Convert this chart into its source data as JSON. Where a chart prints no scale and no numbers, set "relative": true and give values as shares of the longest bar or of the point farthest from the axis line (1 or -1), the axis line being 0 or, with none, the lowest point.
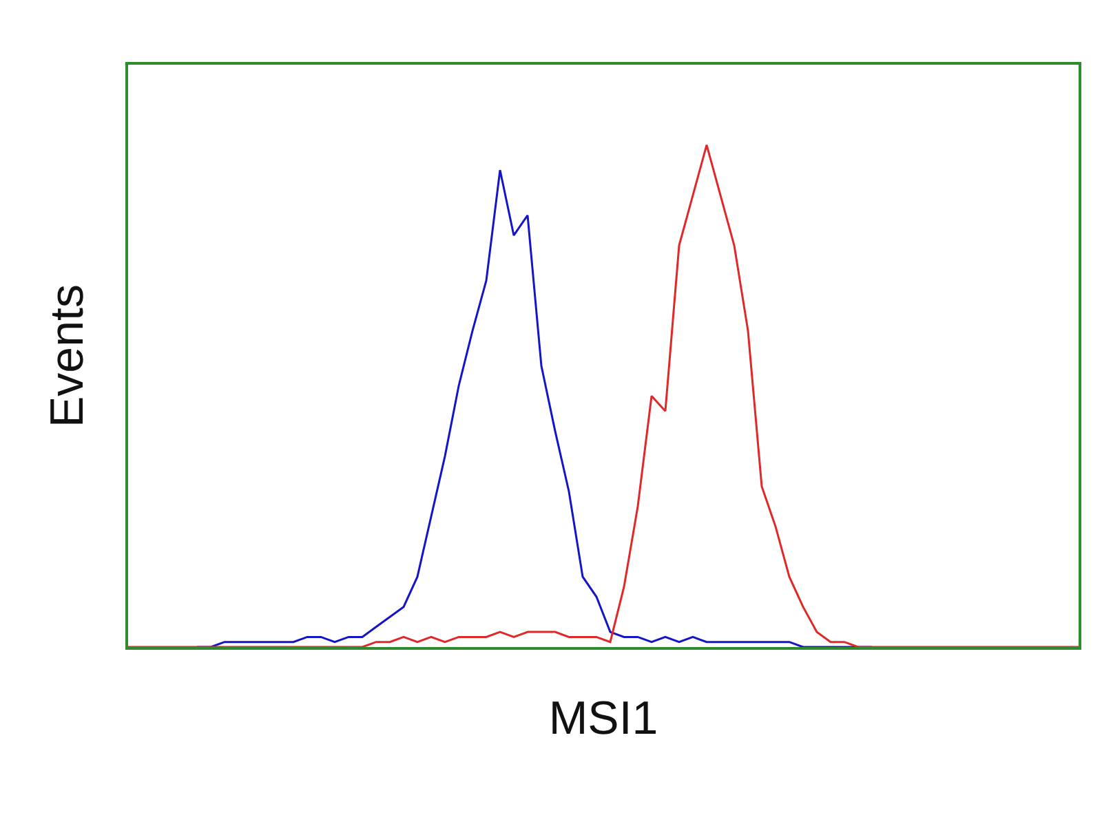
{
  "chart_data": {
    "type": "line",
    "relative": true,
    "xlabel": "MSI1",
    "ylabel": "Events",
    "grid": false,
    "marker": "none",
    "line_style": "solid",
    "categories": [
      null,
      null,
      null,
      null,
      null,
      null,
      null,
      null,
      null,
      null,
      null,
      null,
      null,
      null,
      null,
      null,
      null,
      null,
      null,
      null,
      null,
      null,
      null,
      null,
      null,
      null,
      null,
      null,
      null,
      null,
      null,
      null,
      null,
      null,
      null,
      null,
      null,
      null,
      null,
      null,
      null,
      null,
      null,
      null,
      null,
      null,
      null,
      null,
      null,
      null,
      null,
      null,
      null,
      null,
      null,
      null,
      null,
      null,
      null,
      null,
      null,
      null,
      null,
      null,
      null,
      null,
      null,
      null,
      null,
      null
    ],
    "series": [
      {
        "color": "#1414c8",
        "values": [
          null,
          null,
          null,
          null,
          null,
          0,
          0,
          0.01,
          0.01,
          0.01,
          0.01,
          0.01,
          0.01,
          0.02,
          0.02,
          0.01,
          0.02,
          0.02,
          0.04,
          0.06,
          0.08,
          0.14,
          0.26,
          0.38,
          0.52,
          0.63,
          0.73,
          0.95,
          0.82,
          0.86,
          0.56,
          0.43,
          0.31,
          0.14,
          0.1,
          0.03,
          0.02,
          0.02,
          0.01,
          0.02,
          0.01,
          0.02,
          0.01,
          0.01,
          0.01,
          0.01,
          0.01,
          0.01,
          0.01,
          0,
          0,
          0,
          0,
          0,
          0,
          null,
          null,
          null,
          null,
          null,
          null,
          null,
          null,
          null,
          null,
          null,
          null,
          null,
          null,
          null
        ]
      },
      {
        "color": "#e02828",
        "values": [
          0,
          0,
          0,
          0,
          0,
          0,
          0,
          0,
          0,
          0,
          0,
          0,
          0,
          0,
          0,
          0,
          0,
          0,
          0.01,
          0.01,
          0.02,
          0.01,
          0.02,
          0.01,
          0.02,
          0.02,
          0.02,
          0.03,
          0.02,
          0.03,
          0.03,
          0.03,
          0.02,
          0.02,
          0.02,
          0.01,
          0.12,
          0.28,
          0.5,
          0.47,
          0.8,
          0.9,
          1,
          0.9,
          0.8,
          0.63,
          0.32,
          0.24,
          0.14,
          0.08,
          0.03,
          0.01,
          0.01,
          0,
          0,
          0,
          0,
          0,
          0,
          0,
          0,
          0,
          0,
          0,
          0,
          0,
          0,
          0,
          0,
          0
        ]
      }
    ]
  }
}
